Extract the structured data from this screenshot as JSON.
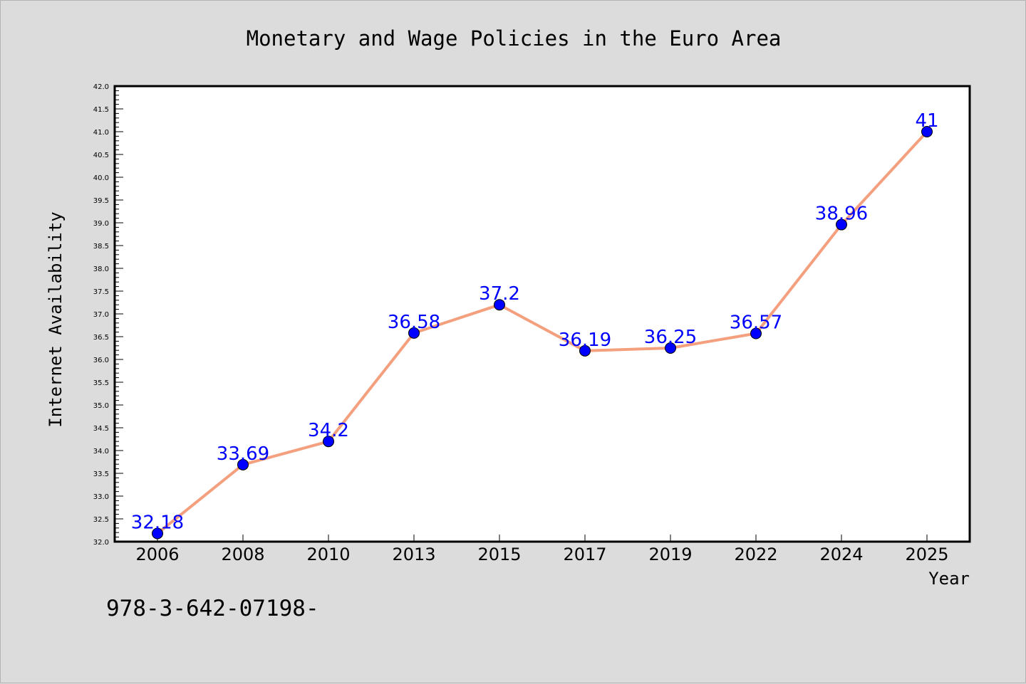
{
  "chart_data": {
    "type": "line",
    "title": "Monetary and Wage Policies in the Euro Area",
    "xlabel": "Year",
    "ylabel": "Internet Availability",
    "categories": [
      "2006",
      "2008",
      "2010",
      "2013",
      "2015",
      "2017",
      "2019",
      "2022",
      "2024",
      "2025"
    ],
    "series": [
      {
        "values": [
          32.18,
          33.69,
          34.2,
          36.58,
          37.2,
          36.19,
          36.25,
          36.57,
          38.96,
          41
        ],
        "data_labels": [
          "32.18",
          "33.69",
          "34.2",
          "36.58",
          "37.2",
          "36.19",
          "36.25",
          "36.57",
          "38.96",
          "41"
        ],
        "line_color": "#f4a07e",
        "marker_color": "#0000ff"
      }
    ],
    "ylim": [
      32.0,
      42.0
    ],
    "ytick_step": 0.5,
    "grid": false,
    "legend": "none"
  },
  "footnote": "978-3-642-07198-"
}
